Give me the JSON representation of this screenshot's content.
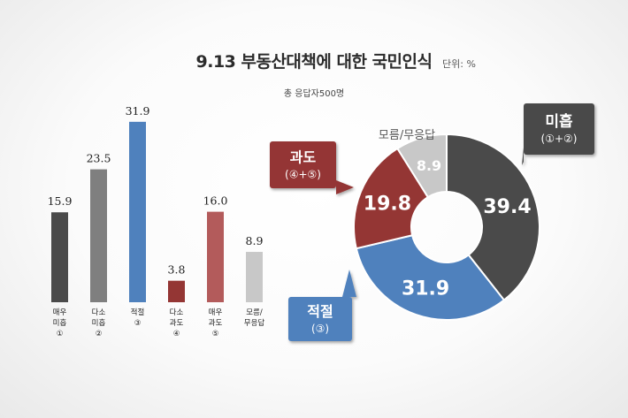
{
  "title": "9.13 부동산대책에 대한 국민인식",
  "unit": "단위: %",
  "subtitle": "총 응답자500명",
  "colors": {
    "dark": "#4a4a4a",
    "gray": "#7f7f7f",
    "blue": "#4f81bd",
    "darkred": "#943634",
    "rose": "#b35b5b",
    "light": "#c8c8c8"
  },
  "chart_data": [
    {
      "type": "bar",
      "categories": [
        [
          "매우",
          "미흡",
          "①"
        ],
        [
          "다소",
          "미흡",
          "②"
        ],
        [
          "적절",
          "③"
        ],
        [
          "다소",
          "과도",
          "④"
        ],
        [
          "매우",
          "과도",
          "⑤"
        ],
        [
          "모름/",
          "무응답"
        ]
      ],
      "values": [
        15.9,
        23.5,
        31.9,
        3.8,
        16.0,
        8.9
      ],
      "value_labels": [
        "15.9",
        "23.5",
        "31.9",
        "3.8",
        "16.0",
        "8.9"
      ],
      "colors": [
        "#4a4a4a",
        "#7f7f7f",
        "#4f81bd",
        "#943634",
        "#b35b5b",
        "#c8c8c8"
      ]
    },
    {
      "type": "pie",
      "donut": true,
      "slices": [
        {
          "label": "미흡",
          "sublabel": "(①+②)",
          "value": 39.4,
          "value_label": "39.4",
          "color": "#4a4a4a"
        },
        {
          "label": "적절",
          "sublabel": "(③)",
          "value": 31.9,
          "value_label": "31.9",
          "color": "#4f81bd"
        },
        {
          "label": "과도",
          "sublabel": "(④+⑤)",
          "value": 19.8,
          "value_label": "19.8",
          "color": "#943634"
        },
        {
          "label": "모름/무응답",
          "sublabel": "",
          "value": 8.9,
          "value_label": "8.9",
          "color": "#c8c8c8"
        }
      ]
    }
  ]
}
